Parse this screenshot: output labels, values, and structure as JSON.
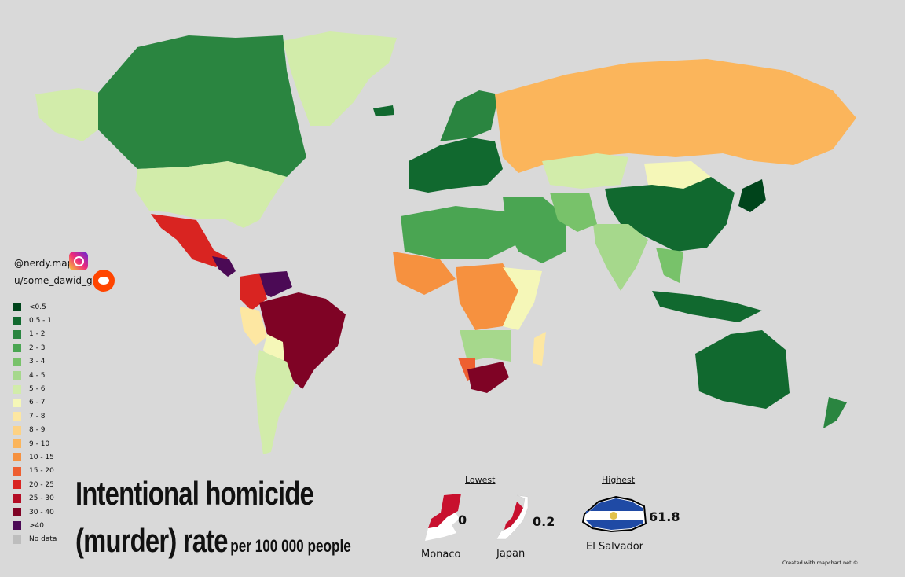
{
  "social": {
    "instagram": "@nerdy.maps",
    "reddit": "u/some_dawid_guy",
    "instagram_icon": "instagram-icon",
    "reddit_icon": "reddit-icon"
  },
  "legend": [
    {
      "label": "<0.5",
      "color": "#00441b"
    },
    {
      "label": "0.5 - 1",
      "color": "#11692f"
    },
    {
      "label": "1 - 2",
      "color": "#2a8540"
    },
    {
      "label": "2 - 3",
      "color": "#4aa552"
    },
    {
      "label": "3 - 4",
      "color": "#78c26a"
    },
    {
      "label": "4 - 5",
      "color": "#a6d88c"
    },
    {
      "label": "5 - 6",
      "color": "#d2ecaa"
    },
    {
      "label": "6 - 7",
      "color": "#f5f7b8"
    },
    {
      "label": "7 - 8",
      "color": "#fde7a2"
    },
    {
      "label": "8 - 9",
      "color": "#fdd284"
    },
    {
      "label": "9 - 10",
      "color": "#fbb55b"
    },
    {
      "label": "10 - 15",
      "color": "#f6913f"
    },
    {
      "label": "15 - 20",
      "color": "#ee5f31"
    },
    {
      "label": "20 - 25",
      "color": "#d92421"
    },
    {
      "label": "25 - 30",
      "color": "#b40d25"
    },
    {
      "label": "30 - 40",
      "color": "#7f0325"
    },
    {
      "label": ">40",
      "color": "#4b0a55"
    },
    {
      "label": "No data",
      "color": "#bdbdbd"
    }
  ],
  "title": {
    "line1": "Intentional homicide",
    "line2_main": "(murder) rate",
    "line2_sub": "per 100 000 people"
  },
  "lowest": {
    "header": "Lowest",
    "items": [
      {
        "name": "Monaco",
        "value": "0"
      },
      {
        "name": "Japan",
        "value": "0.2"
      }
    ]
  },
  "highest": {
    "header": "Highest",
    "items": [
      {
        "name": "El Salvador",
        "value": "61.8"
      }
    ]
  },
  "footer": "Created with mapchart.net ©"
}
